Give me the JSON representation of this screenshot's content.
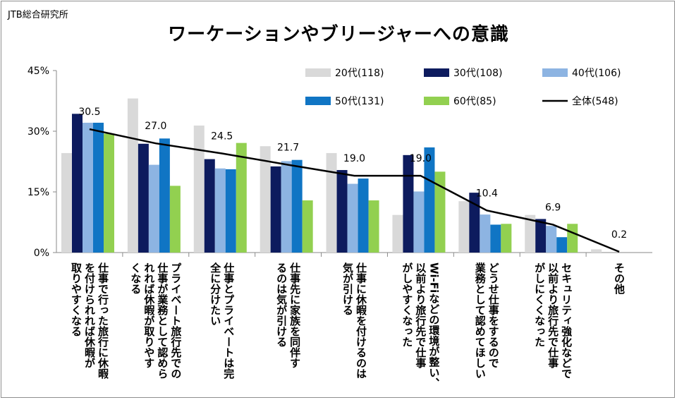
{
  "source": "JTB総合研究所",
  "chart_data": {
    "type": "bar",
    "title": "ワーケーションやブリージャーへの意識",
    "ylim": [
      0,
      45
    ],
    "yticks": [
      0,
      15,
      30,
      45
    ],
    "ytick_labels": [
      "0%",
      "15%",
      "30%",
      "45%"
    ],
    "legend_position": "top-right",
    "categories": [
      "仕事で行った旅行に休暇を付けられれば休暇が取りやすくなる",
      "プライベート旅行先での仕事が業務として認められれば休暇が取りやすくなる",
      "仕事とプライベートは完全に分けたい",
      "仕事先に家族を同伴するのは気が引ける",
      "仕事に休暇を付けるのは気が引ける",
      "Wi-Fiなどの環境が整い、以前より旅行先で仕事がしやすくなった",
      "どうせ仕事をするので業務として認めてほしい",
      "セキュリティ強化などで以前より旅行先で仕事がしにくくなった",
      "その他"
    ],
    "category_lines": [
      [
        "仕事で行った旅行に休暇",
        "を付けられれば休暇が",
        "取りやすくなる"
      ],
      [
        "プライベート旅行先での",
        "仕事が業務として認めら",
        "れれば休暇が取りやす",
        "くなる"
      ],
      [
        "仕事とプライベートは完",
        "全に分けたい"
      ],
      [
        "仕事先に家族を同伴す",
        "るのは気が引ける"
      ],
      [
        "仕事に休暇を付けるのは",
        "気が引ける"
      ],
      [
        "Wi-Fiなどの環境が整い、",
        "以前より旅行先で仕事",
        "がしやすくなった"
      ],
      [
        "どうせ仕事をするので",
        "業務として認めてほしい"
      ],
      [
        "セキュリティ強化などで",
        "以前より旅行先で仕事",
        "がしにくくなった"
      ],
      [
        "その他"
      ]
    ],
    "series": [
      {
        "name": "20代",
        "n": "(118)",
        "color": "#d9d9d9",
        "values": [
          24.6,
          38.1,
          31.4,
          26.3,
          24.6,
          9.3,
          12.7,
          9.3,
          0.8
        ]
      },
      {
        "name": "30代",
        "n": "(108)",
        "color": "#0d1b5e",
        "values": [
          34.3,
          26.9,
          23.1,
          21.3,
          20.4,
          24.1,
          14.8,
          8.3,
          0
        ]
      },
      {
        "name": "40代",
        "n": "(106)",
        "color": "#8db4e2",
        "values": [
          32.1,
          21.7,
          20.8,
          22.6,
          17.0,
          15.1,
          9.4,
          6.6,
          0
        ]
      },
      {
        "name": "50代",
        "n": "(131)",
        "color": "#1075c4",
        "values": [
          32.1,
          28.2,
          20.6,
          22.9,
          18.3,
          26.0,
          6.9,
          3.8,
          0
        ]
      },
      {
        "name": "60代",
        "n": "(85)",
        "color": "#92d050",
        "values": [
          29.4,
          16.5,
          27.1,
          12.9,
          12.9,
          20.0,
          7.1,
          7.1,
          0
        ]
      }
    ],
    "line_series": {
      "name": "全体",
      "n": "(548)",
      "color": "#000000",
      "values": [
        30.5,
        27.0,
        24.5,
        21.7,
        19.0,
        19.0,
        10.4,
        6.9,
        0.2
      ]
    },
    "data_labels": [
      "30.5",
      "27.0",
      "24.5",
      "21.7",
      "19.0",
      "19.0",
      "10.4",
      "6.9",
      "0.2"
    ]
  }
}
